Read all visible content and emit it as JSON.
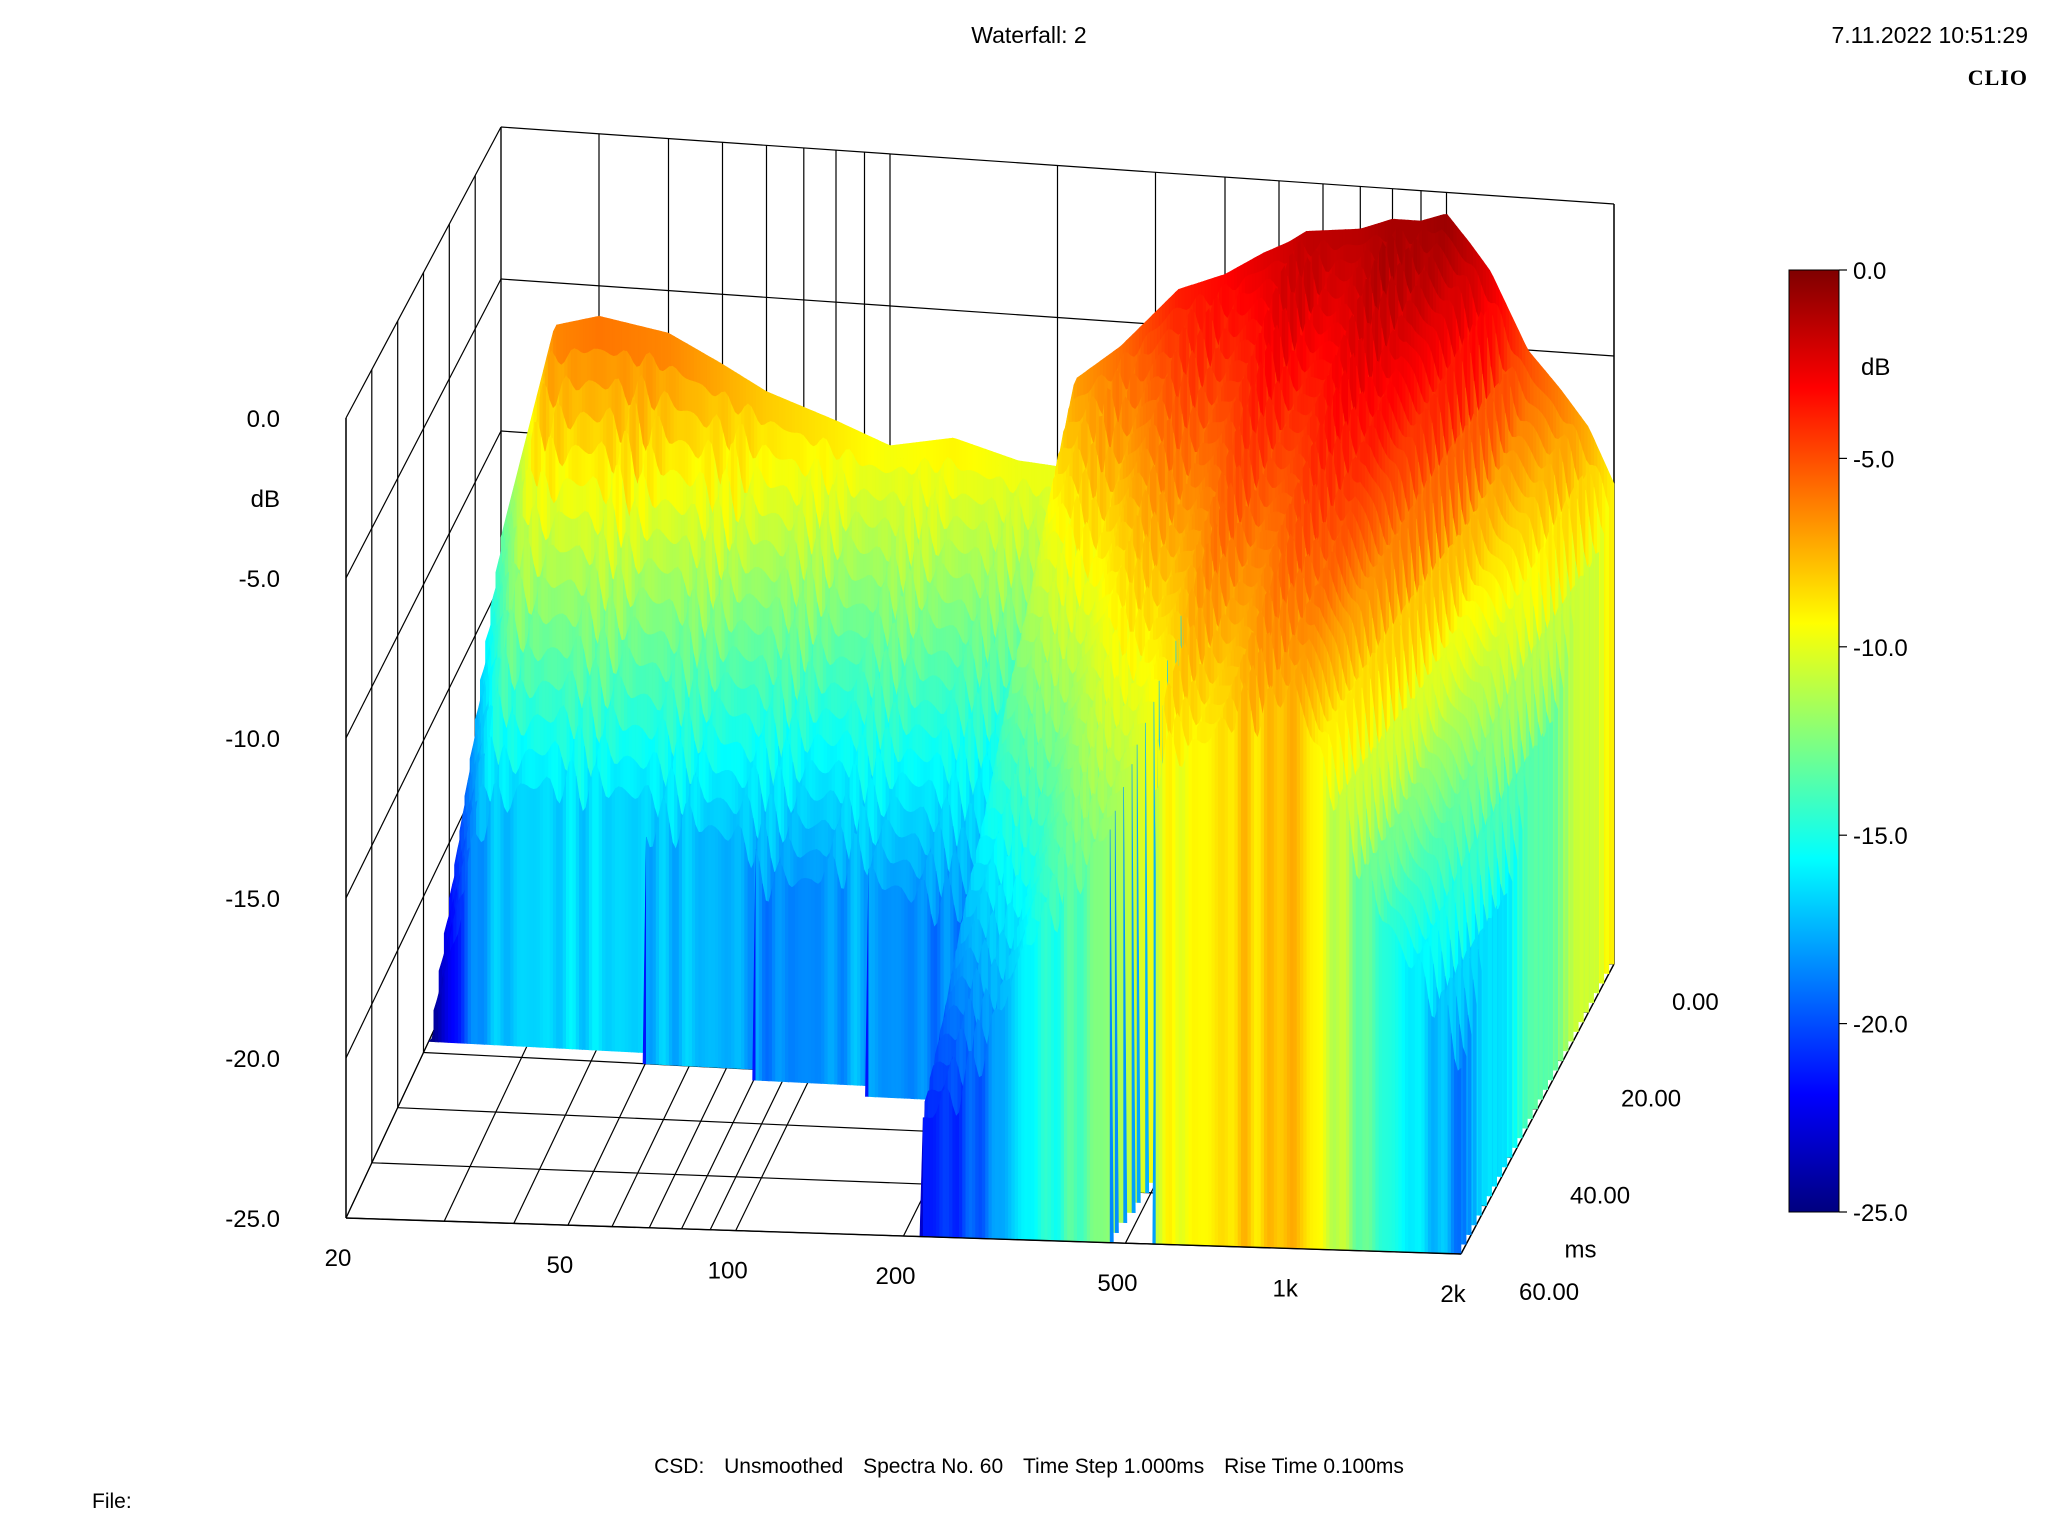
{
  "header": {
    "title": "Waterfall: 2",
    "timestamp": "7.11.2022 10:51:29",
    "brand": "CLIO"
  },
  "footer": {
    "csd_label": "CSD:",
    "smoothing": "Unsmoothed",
    "spectra": "Spectra No. 60",
    "time_step": "Time Step 1.000ms",
    "rise_time": "Rise Time 0.100ms",
    "file_label": "File:"
  },
  "chart_data": {
    "type": "waterfall",
    "x_axis": {
      "scale": "log",
      "range": [
        20,
        2000
      ],
      "ticks": [
        20,
        50,
        100,
        200,
        500,
        1000,
        2000
      ],
      "tick_labels": [
        "20",
        "50",
        "100",
        "200",
        "500",
        "1k",
        "2k"
      ]
    },
    "y_axis": {
      "label": "dB",
      "range": [
        -25,
        0
      ],
      "tick_labels": [
        "0.0",
        "-5.0",
        "-10.0",
        "-15.0",
        "-20.0",
        "-25.0"
      ]
    },
    "z_axis": {
      "label": "ms",
      "range": [
        0,
        60
      ],
      "tick_labels": [
        "0.00",
        "20.00",
        "40.00",
        "60.00"
      ]
    },
    "colorbar": {
      "label": "dB",
      "range": [
        -25,
        0
      ],
      "tick_labels": [
        "0.0",
        "-5.0",
        "-10.0",
        "-15.0",
        "-20.0",
        "-25.0"
      ],
      "colormap": [
        "#00007f",
        "#0000ff",
        "#0080ff",
        "#00ffff",
        "#80ff80",
        "#ffff00",
        "#ff8000",
        "#ff0000",
        "#7f0000"
      ]
    },
    "grid": true,
    "spectra_count": 60,
    "first_spectrum": {
      "freq": [
        20,
        25,
        30,
        40,
        50,
        60,
        80,
        100,
        130,
        170,
        200,
        215,
        260,
        300,
        330,
        400,
        470,
        520,
        560,
        700,
        800,
        900,
        1000,
        1100,
        1200,
        1400,
        1600,
        1800,
        2000
      ],
      "db": [
        -13.5,
        -6.4,
        -6.0,
        -6.4,
        -7.3,
        -8.1,
        -8.9,
        -9.6,
        -9.2,
        -9.8,
        -9.9,
        -7.0,
        -5.8,
        -4.6,
        -3.8,
        -3.2,
        -2.4,
        -2.0,
        -1.6,
        -1.4,
        -1.0,
        -1.0,
        -0.7,
        -1.6,
        -2.5,
        -5.0,
        -6.2,
        -7.4,
        -9.2
      ]
    },
    "decay_db_per_ms": [
      0.42,
      0.4,
      0.38,
      0.36,
      0.34,
      0.3,
      0.3,
      0.28,
      0.26,
      0.26,
      0.26,
      0.24,
      0.24,
      0.22,
      0.2,
      0.18,
      0.16,
      0.15,
      0.14,
      0.13,
      0.12,
      0.12,
      0.11,
      0.13,
      0.14,
      0.15,
      0.16,
      0.16,
      0.16
    ],
    "decay_end_ms": [
      28,
      28,
      28,
      28,
      30,
      30,
      32,
      32,
      34,
      34,
      34,
      60,
      60,
      60,
      60,
      60,
      60,
      38,
      60,
      60,
      60,
      60,
      60,
      60,
      60,
      60,
      60,
      60,
      60
    ]
  }
}
